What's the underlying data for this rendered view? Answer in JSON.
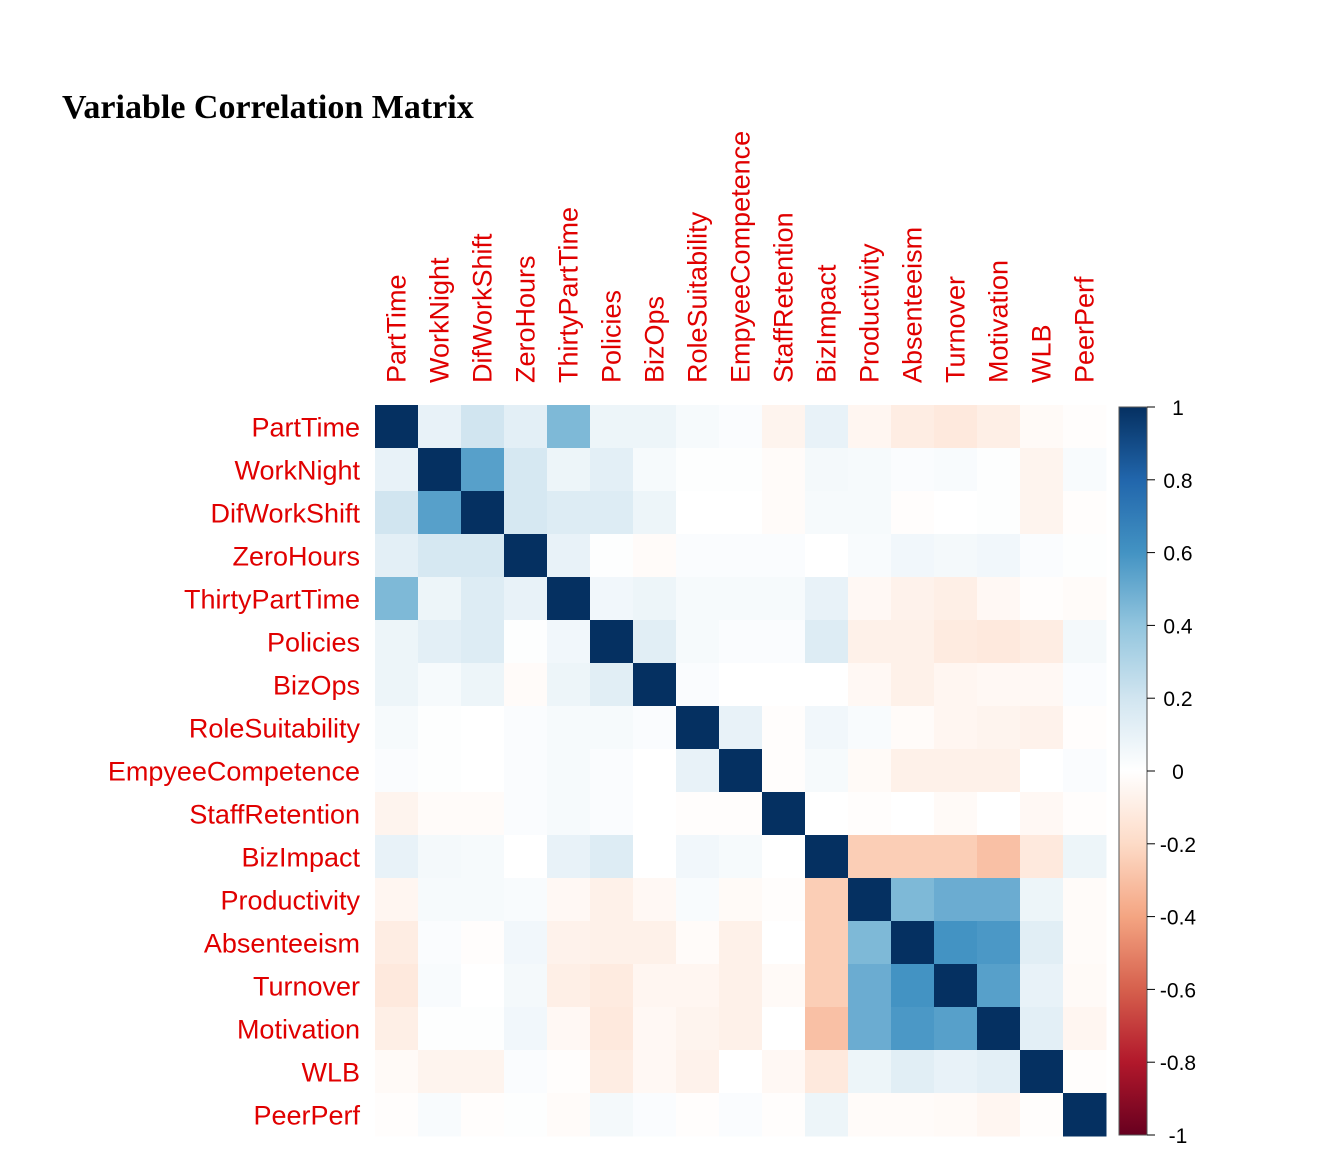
{
  "chart_data": {
    "type": "heatmap",
    "title": "Variable Correlation Matrix",
    "variables": [
      "PartTime",
      "WorkNight",
      "DifWorkShift",
      "ZeroHours",
      "ThirtyPartTime",
      "Policies",
      "BizOps",
      "RoleSuitability",
      "EmpyeeCompetence",
      "StaffRetention",
      "BizImpact",
      "Productivity",
      "Absenteeism",
      "Turnover",
      "Motivation",
      "WLB",
      "PeerPerf"
    ],
    "values": [
      [
        1.0,
        0.1,
        0.2,
        0.12,
        0.45,
        0.08,
        0.08,
        0.04,
        0.02,
        -0.06,
        0.1,
        -0.05,
        -0.1,
        -0.12,
        -0.09,
        -0.03,
        -0.01
      ],
      [
        0.1,
        1.0,
        0.55,
        0.18,
        0.08,
        0.12,
        0.04,
        0.01,
        0.01,
        -0.02,
        0.05,
        0.04,
        0.02,
        0.03,
        0.01,
        -0.06,
        0.03
      ],
      [
        0.2,
        0.55,
        1.0,
        0.18,
        0.15,
        0.15,
        0.08,
        0.0,
        0.0,
        -0.02,
        0.04,
        0.04,
        -0.01,
        0.0,
        0.01,
        -0.06,
        -0.01
      ],
      [
        0.12,
        0.18,
        0.18,
        1.0,
        0.1,
        0.01,
        -0.02,
        0.02,
        0.02,
        0.02,
        0.0,
        0.03,
        0.06,
        0.05,
        0.06,
        0.02,
        0.01
      ],
      [
        0.45,
        0.08,
        0.15,
        0.1,
        1.0,
        0.06,
        0.08,
        0.04,
        0.04,
        0.04,
        0.1,
        -0.04,
        -0.07,
        -0.09,
        -0.04,
        -0.01,
        -0.02
      ],
      [
        0.08,
        0.12,
        0.15,
        0.01,
        0.06,
        1.0,
        0.13,
        0.04,
        0.02,
        0.02,
        0.15,
        -0.08,
        -0.08,
        -0.11,
        -0.12,
        -0.1,
        0.05
      ],
      [
        0.08,
        0.04,
        0.08,
        -0.02,
        0.08,
        0.13,
        1.0,
        0.02,
        0.0,
        0.0,
        0.0,
        -0.04,
        -0.08,
        -0.05,
        -0.04,
        -0.04,
        0.02
      ],
      [
        0.04,
        0.01,
        0.0,
        0.02,
        0.04,
        0.04,
        0.02,
        1.0,
        0.1,
        -0.01,
        0.06,
        0.03,
        -0.02,
        -0.05,
        -0.06,
        -0.07,
        -0.01
      ],
      [
        0.02,
        0.01,
        0.0,
        0.02,
        0.04,
        0.02,
        0.0,
        0.1,
        1.0,
        -0.01,
        0.04,
        -0.03,
        -0.08,
        -0.08,
        -0.08,
        0.0,
        0.02
      ],
      [
        -0.06,
        -0.02,
        -0.02,
        0.02,
        0.04,
        0.02,
        0.0,
        -0.01,
        -0.01,
        1.0,
        0.0,
        -0.01,
        0.0,
        -0.03,
        0.0,
        -0.04,
        -0.01
      ],
      [
        0.1,
        0.05,
        0.04,
        0.0,
        0.1,
        0.15,
        0.0,
        0.06,
        0.04,
        0.0,
        1.0,
        -0.25,
        -0.25,
        -0.25,
        -0.3,
        -0.12,
        0.08
      ],
      [
        -0.05,
        0.04,
        0.04,
        0.03,
        -0.04,
        -0.08,
        -0.04,
        0.03,
        -0.03,
        -0.01,
        -0.25,
        1.0,
        0.45,
        0.5,
        0.5,
        0.08,
        -0.02
      ],
      [
        -0.1,
        0.02,
        -0.01,
        0.06,
        -0.07,
        -0.08,
        -0.08,
        -0.02,
        -0.08,
        0.0,
        -0.25,
        0.45,
        1.0,
        0.6,
        0.58,
        0.13,
        -0.02
      ],
      [
        -0.12,
        0.03,
        0.0,
        0.05,
        -0.09,
        -0.11,
        -0.05,
        -0.05,
        -0.08,
        -0.03,
        -0.25,
        0.5,
        0.6,
        1.0,
        0.55,
        0.1,
        -0.03
      ],
      [
        -0.09,
        0.01,
        0.01,
        0.06,
        -0.04,
        -0.12,
        -0.04,
        -0.06,
        -0.08,
        0.0,
        -0.3,
        0.5,
        0.58,
        0.55,
        1.0,
        0.12,
        -0.05
      ],
      [
        -0.03,
        -0.06,
        -0.06,
        0.02,
        -0.01,
        -0.1,
        -0.04,
        -0.07,
        0.0,
        -0.04,
        -0.12,
        0.08,
        0.13,
        0.1,
        0.12,
        1.0,
        -0.01
      ],
      [
        -0.01,
        0.03,
        -0.01,
        0.01,
        -0.02,
        0.05,
        0.02,
        -0.01,
        0.02,
        -0.01,
        0.08,
        -0.02,
        -0.02,
        -0.03,
        -0.05,
        -0.01,
        1.0
      ]
    ],
    "colorbar": {
      "range": [
        -1,
        1
      ],
      "ticks": [
        "1",
        "0.8",
        "0.6",
        "0.4",
        "0.2",
        "0",
        "-0.2",
        "-0.4",
        "-0.6",
        "-0.8",
        "-1"
      ],
      "colors": [
        "#67001f",
        "#b2182b",
        "#d6604d",
        "#f4a582",
        "#fddbc7",
        "#ffffff",
        "#d1e5f0",
        "#92c5de",
        "#4393c3",
        "#2166ac",
        "#053061"
      ]
    },
    "label_color": "#e00000",
    "legend": "right"
  }
}
